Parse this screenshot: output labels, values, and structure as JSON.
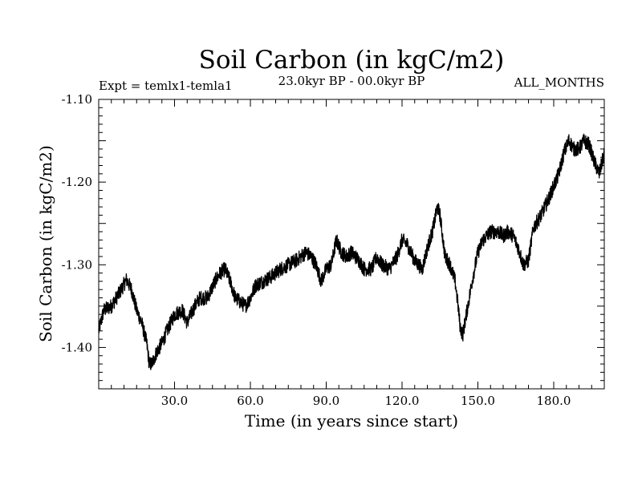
{
  "chart_data": {
    "type": "line",
    "title": "Soil Carbon (in kgC/m2)",
    "subtitle_left": "Expt = temlx1-temla1",
    "subtitle_center": "23.0kyr BP - 00.0kyr BP",
    "subtitle_right": "ALL_MONTHS",
    "xlabel": "Time (in years since start)",
    "ylabel": "Soil Carbon (in kgC/m2)",
    "xlim": [
      0,
      200
    ],
    "ylim": [
      -1.45,
      -1.1
    ],
    "x_ticks": [
      30,
      60,
      90,
      120,
      150,
      180
    ],
    "x_tick_labels": [
      "30.0",
      "60.0",
      "90.0",
      "120.0",
      "150.0",
      "180.0"
    ],
    "y_ticks": [
      -1.1,
      -1.2,
      -1.3,
      -1.4
    ],
    "y_tick_labels": [
      "-1.10",
      "-1.20",
      "-1.30",
      "-1.40"
    ],
    "noise_amplitude": 0.009,
    "series": [
      {
        "name": "Soil Carbon",
        "x": [
          0,
          2,
          5,
          8,
          11,
          13,
          15,
          17,
          19,
          20,
          21,
          23,
          25,
          27,
          30,
          33,
          35,
          38,
          40,
          43,
          46,
          48,
          50,
          52,
          54,
          56,
          58,
          60,
          62,
          65,
          68,
          72,
          75,
          78,
          80,
          82,
          84,
          86,
          88,
          90,
          92,
          94,
          96,
          98,
          100,
          103,
          105,
          108,
          110,
          112,
          115,
          118,
          120,
          122,
          125,
          128,
          130,
          132,
          134,
          135,
          137,
          139,
          141,
          142,
          143,
          144,
          146,
          148,
          150,
          152,
          155,
          158,
          160,
          162,
          164,
          166,
          168,
          170,
          172,
          175,
          178,
          180,
          182,
          184,
          186,
          188,
          190,
          192,
          194,
          196,
          198,
          200
        ],
        "values": [
          -1.38,
          -1.355,
          -1.35,
          -1.335,
          -1.318,
          -1.33,
          -1.355,
          -1.37,
          -1.395,
          -1.42,
          -1.42,
          -1.405,
          -1.395,
          -1.38,
          -1.36,
          -1.355,
          -1.37,
          -1.35,
          -1.34,
          -1.34,
          -1.32,
          -1.31,
          -1.305,
          -1.32,
          -1.34,
          -1.345,
          -1.35,
          -1.34,
          -1.325,
          -1.32,
          -1.315,
          -1.305,
          -1.3,
          -1.295,
          -1.29,
          -1.285,
          -1.29,
          -1.3,
          -1.32,
          -1.305,
          -1.3,
          -1.27,
          -1.285,
          -1.29,
          -1.285,
          -1.295,
          -1.305,
          -1.305,
          -1.29,
          -1.3,
          -1.305,
          -1.29,
          -1.27,
          -1.275,
          -1.295,
          -1.305,
          -1.28,
          -1.26,
          -1.23,
          -1.24,
          -1.29,
          -1.3,
          -1.32,
          -1.345,
          -1.375,
          -1.385,
          -1.35,
          -1.315,
          -1.285,
          -1.27,
          -1.26,
          -1.26,
          -1.265,
          -1.26,
          -1.265,
          -1.28,
          -1.3,
          -1.295,
          -1.255,
          -1.24,
          -1.22,
          -1.205,
          -1.19,
          -1.165,
          -1.15,
          -1.16,
          -1.16,
          -1.15,
          -1.155,
          -1.175,
          -1.19,
          -1.165
        ]
      }
    ]
  }
}
